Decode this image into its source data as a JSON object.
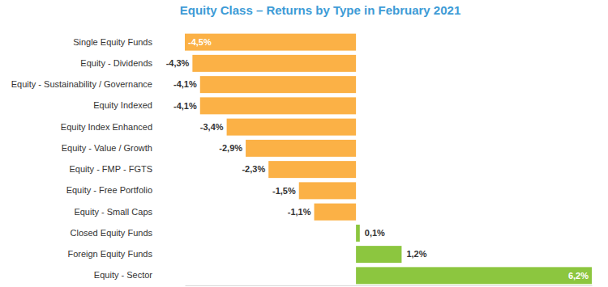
{
  "chart_data": {
    "type": "bar",
    "orientation": "horizontal",
    "title": "Equity Class – Returns by Type in February 2021",
    "categories": [
      "Single Equity Funds",
      "Equity - Dividends",
      "Equity - Sustainability / Governance",
      "Equity Indexed",
      "Equity Index Enhanced",
      "Equity - Value / Growth",
      "Equity - FMP - FGTS",
      "Equity - Free Portfolio",
      "Equity - Small Caps",
      "Closed Equity Funds",
      "Foreign Equity Funds",
      "Equity - Sector"
    ],
    "values": [
      -4.5,
      -4.3,
      -4.1,
      -4.1,
      -3.4,
      -2.9,
      -2.3,
      -1.5,
      -1.1,
      0.1,
      1.2,
      6.2
    ],
    "value_labels": [
      "-4,5%",
      "-4,3%",
      "-4,1%",
      "-4,1%",
      "-3,4%",
      "-2,9%",
      "-2,3%",
      "-1,5%",
      "-1,1%",
      "0,1%",
      "1,2%",
      "6,2%"
    ],
    "colors": [
      "#fbb146",
      "#fbb146",
      "#fbb146",
      "#fbb146",
      "#fbb146",
      "#fbb146",
      "#fbb146",
      "#fbb146",
      "#fbb146",
      "#8cc63f",
      "#8cc63f",
      "#8cc63f"
    ],
    "xlim": [
      -4.5,
      6.2
    ],
    "data_labels": true,
    "tick_labels": "y",
    "grid": false
  }
}
